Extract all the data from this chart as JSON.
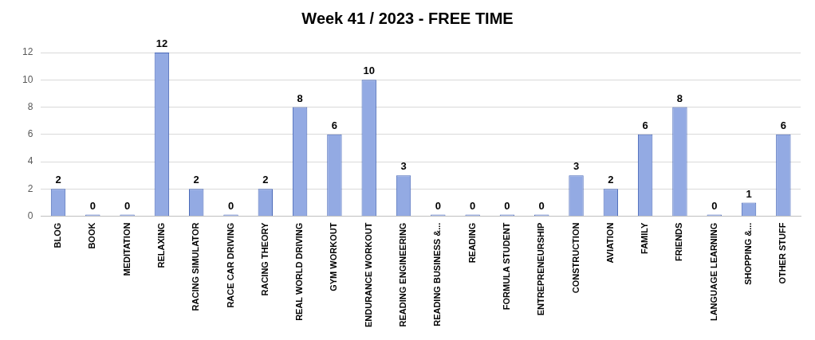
{
  "chart_data": {
    "type": "bar",
    "title": "Week 41 / 2023 - FREE TIME",
    "categories": [
      "BLOG",
      "BOOK",
      "MEDITATION",
      "RELAXING",
      "RACING SIMULATOR",
      "RACE CAR DRIVING",
      "RACING THEORY",
      "REAL WORLD DRIVING",
      "GYM WORKOUT",
      "ENDURANCE WORKOUT",
      "READING ENGINEERING",
      "READING BUSINESS &...",
      "READING",
      "FORMULA STUDENT",
      "ENTREPRENEURSHIP",
      "CONSTRUCTION",
      "AVIATION",
      "FAMILY",
      "FRIENDS",
      "LANGUAGE LEARNING",
      "SHOPPING &...",
      "OTHER STUFF"
    ],
    "values": [
      2,
      0,
      0,
      12,
      2,
      0,
      2,
      8,
      6,
      10,
      3,
      0,
      0,
      0,
      0,
      3,
      2,
      6,
      8,
      0,
      1,
      6
    ],
    "color": "#93aae3",
    "ylim": [
      0,
      12
    ],
    "yticks": [
      0,
      2,
      4,
      6,
      8,
      10,
      12
    ],
    "grid": "y",
    "data_labels": true
  }
}
